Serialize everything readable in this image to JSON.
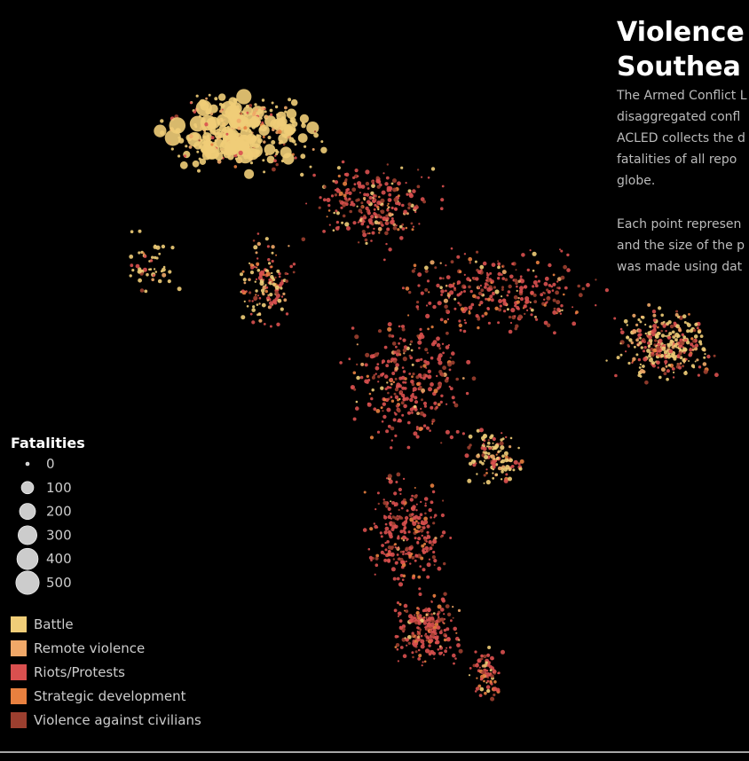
{
  "title_lines": [
    "Violence",
    "Southea"
  ],
  "description": {
    "paragraph_1": [
      "The Armed Conflict L",
      "disaggregated confl",
      "ACLED collects the d",
      "fatalities of all repo",
      "globe."
    ],
    "paragraph_2": [
      "Each point represen",
      "and the size of the p",
      "was made using dat"
    ]
  },
  "size_legend": {
    "title": "Fatalities",
    "values": [
      0,
      100,
      200,
      300,
      400,
      500
    ],
    "color": "#cccccc"
  },
  "color_legend": {
    "items": [
      {
        "label": "Battle",
        "color": "#f0cd78"
      },
      {
        "label": "Remote violence",
        "color": "#f0a868"
      },
      {
        "label": "Riots/Protests",
        "color": "#d9504f"
      },
      {
        "label": "Strategic development",
        "color": "#e8803f"
      },
      {
        "label": "Violence against civilians",
        "color": "#9c3f2f"
      }
    ]
  }
}
